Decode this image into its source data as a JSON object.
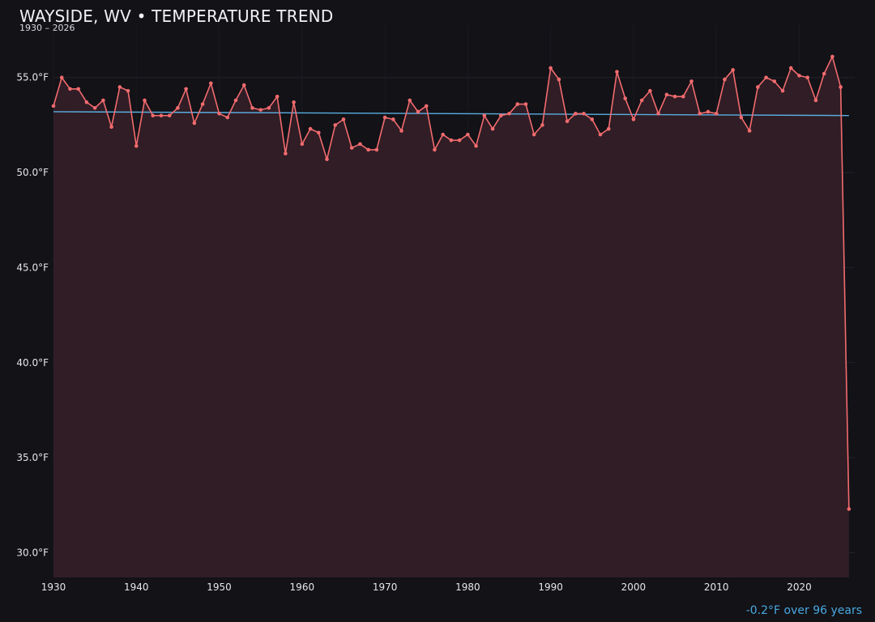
{
  "colors": {
    "background": "#121217",
    "line": "#f26b6e",
    "area": "#331f26",
    "trend": "#5aaee0",
    "grid": "#23232a",
    "text": "#e6e6ea",
    "note": "#4aa8e0"
  },
  "header": {
    "title": "WAYSIDE, WV • TEMPERATURE TREND",
    "subtitle": "1930 – 2026"
  },
  "footer": {
    "trend_note": "-0.2°F over 96 years"
  },
  "chart_data": {
    "type": "line",
    "title": "WAYSIDE, WV • TEMPERATURE TREND",
    "subtitle": "1930 – 2026",
    "xlabel": "",
    "ylabel": "",
    "xlim": [
      1930,
      2026.7
    ],
    "ylim": [
      28.7,
      57.8
    ],
    "x_ticks": [
      1930,
      1940,
      1950,
      1960,
      1970,
      1980,
      1990,
      2000,
      2010,
      2020
    ],
    "x_tick_labels": [
      "1930",
      "1940",
      "1950",
      "1960",
      "1970",
      "1980",
      "1990",
      "2000",
      "2010",
      "2020"
    ],
    "y_ticks": [
      30,
      35,
      40,
      45,
      50,
      55
    ],
    "y_tick_labels": [
      "30.0°F",
      "35.0°F",
      "40.0°F",
      "45.0°F",
      "50.0°F",
      "55.0°F"
    ],
    "grid": true,
    "area_fill": true,
    "series": [
      {
        "x": [
          1930,
          1931,
          1932,
          1933,
          1934,
          1935,
          1936,
          1937,
          1938,
          1939,
          1940,
          1941,
          1942,
          1943,
          1944,
          1945,
          1946,
          1947,
          1948,
          1949,
          1950,
          1951,
          1952,
          1953,
          1954,
          1955,
          1956,
          1957,
          1958,
          1959,
          1960,
          1961,
          1962,
          1963,
          1964,
          1965,
          1966,
          1967,
          1968,
          1969,
          1970,
          1971,
          1972,
          1973,
          1974,
          1975,
          1976,
          1977,
          1978,
          1979,
          1980,
          1981,
          1982,
          1983,
          1984,
          1985,
          1986,
          1987,
          1988,
          1989,
          1990,
          1991,
          1992,
          1993,
          1994,
          1995,
          1996,
          1997,
          1998,
          1999,
          2000,
          2001,
          2002,
          2003,
          2004,
          2005,
          2006,
          2007,
          2008,
          2009,
          2010,
          2011,
          2012,
          2013,
          2014,
          2015,
          2016,
          2017,
          2018,
          2019,
          2020,
          2021,
          2022,
          2023,
          2024,
          2025,
          2026
        ],
        "y": [
          53.5,
          55.0,
          54.4,
          54.4,
          53.7,
          53.4,
          53.8,
          52.4,
          54.5,
          54.3,
          51.4,
          53.8,
          53.0,
          53.0,
          53.0,
          53.4,
          54.4,
          52.6,
          53.6,
          54.7,
          53.1,
          52.9,
          53.8,
          54.6,
          53.4,
          53.3,
          53.4,
          54.0,
          51.0,
          53.7,
          51.5,
          52.3,
          52.1,
          50.7,
          52.5,
          52.8,
          51.3,
          51.5,
          51.2,
          51.2,
          52.9,
          52.8,
          52.2,
          53.8,
          53.2,
          53.5,
          51.2,
          52.0,
          51.7,
          51.7,
          52.0,
          51.4,
          53.0,
          52.3,
          53.0,
          53.1,
          53.6,
          53.6,
          52.0,
          52.5,
          55.5,
          54.9,
          52.7,
          53.1,
          53.1,
          52.8,
          52.0,
          52.3,
          55.3,
          53.9,
          52.8,
          53.8,
          54.3,
          53.1,
          54.1,
          54.0,
          54.0,
          54.8,
          53.1,
          53.2,
          53.1,
          54.9,
          55.4,
          52.9,
          52.2,
          54.5,
          55.0,
          54.8,
          54.3,
          55.5,
          55.1,
          55.0,
          53.8,
          55.2,
          56.1,
          54.5,
          32.3
        ]
      }
    ],
    "trendline": {
      "x": [
        1930,
        2026
      ],
      "y": [
        53.2,
        53.0
      ]
    }
  }
}
